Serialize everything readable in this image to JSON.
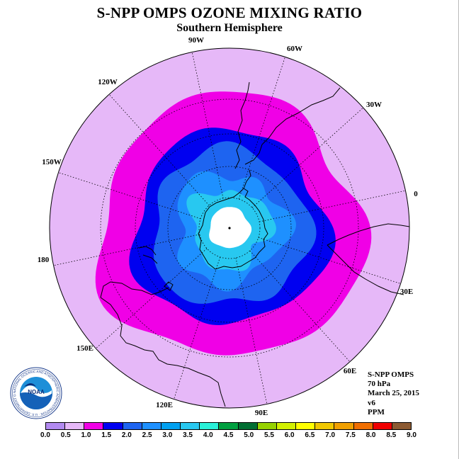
{
  "header": {
    "title": "S-NPP OMPS OZONE MIXING RATIO",
    "subtitle": "Southern Hemisphere"
  },
  "map": {
    "projection": "south polar stereographic",
    "longitude_labels": [
      "0",
      "30E",
      "60E",
      "90E",
      "120E",
      "150E",
      "180",
      "150W",
      "120W",
      "90W",
      "60W",
      "30W"
    ],
    "contour_colors": {
      "outer": "#E6B8F8",
      "band_1_0_1_5": "#F000E6",
      "band_1_5_2_0": "#0000F0",
      "band_2_0_2_5": "#1E64F0",
      "band_2_5_3_0": "#1E90FF",
      "band_3_0_3_5": "#28C8F0",
      "polar_night": "#FFFFFF"
    }
  },
  "info": {
    "instrument": "S-NPP OMPS",
    "level": "70 hPa",
    "date": "March 25, 2015",
    "version": "v6",
    "units": "PPM"
  },
  "legend": {
    "colors": [
      "#B28AF0",
      "#E6B8F8",
      "#F000E6",
      "#0000F0",
      "#1E64F0",
      "#1E90FF",
      "#00A0F0",
      "#28C8F0",
      "#28F0D8",
      "#00A040",
      "#006E32",
      "#96D200",
      "#D2F000",
      "#FFFF00",
      "#F0C800",
      "#F0A000",
      "#F06E00",
      "#F00000",
      "#8C5A32"
    ],
    "ticks": [
      "0.0",
      "0.5",
      "1.0",
      "1.5",
      "2.0",
      "2.5",
      "3.0",
      "3.5",
      "4.0",
      "4.5",
      "5.0",
      "5.5",
      "6.0",
      "6.5",
      "7.0",
      "7.5",
      "8.0",
      "8.5",
      "9.0"
    ]
  },
  "logo": {
    "name": "NOAA",
    "ring_text": "NATIONAL OCEANIC AND ATMOSPHERIC ADMINISTRATION · U.S. DEPARTMENT OF COMMERCE"
  }
}
